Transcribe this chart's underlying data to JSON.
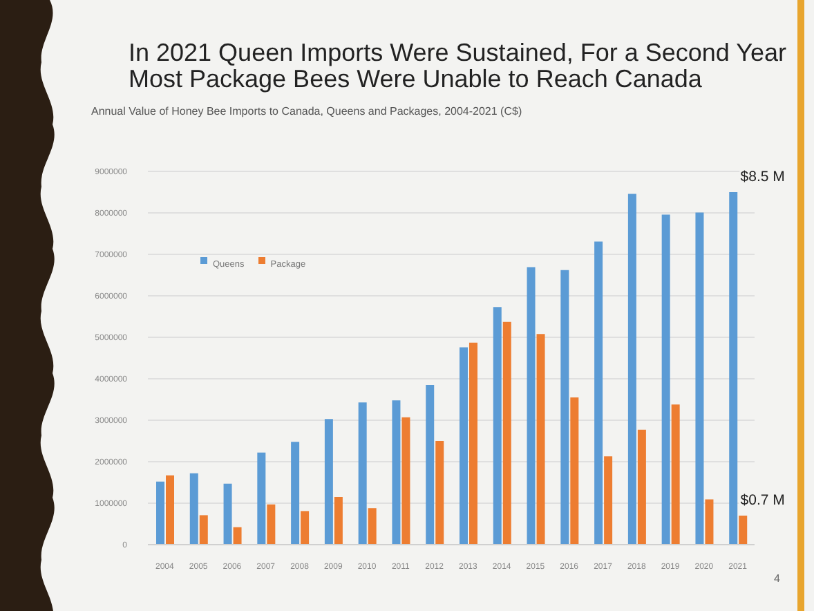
{
  "chart_data": {
    "type": "bar",
    "title": "In 2021 Queen Imports Were Sustained, For a Second Year Most Package Bees Were Unable to Reach Canada",
    "subtitle": "Annual Value of Honey Bee Imports to Canada, Queens and Packages, 2004-2021 (C$)",
    "categories": [
      "2004",
      "2005",
      "2006",
      "2007",
      "2008",
      "2009",
      "2010",
      "2011",
      "2012",
      "2013",
      "2014",
      "2015",
      "2016",
      "2017",
      "2018",
      "2019",
      "2020",
      "2021"
    ],
    "series": [
      {
        "name": "Queens",
        "color": "#5b9bd5",
        "values": [
          1520000,
          1720000,
          1470000,
          2220000,
          2480000,
          3030000,
          3430000,
          3480000,
          3850000,
          4760000,
          5730000,
          6690000,
          6620000,
          7310000,
          8460000,
          7960000,
          8010000,
          8500000
        ]
      },
      {
        "name": "Package",
        "color": "#ed7d31",
        "values": [
          1670000,
          710000,
          420000,
          970000,
          810000,
          1150000,
          880000,
          3070000,
          2500000,
          4870000,
          5370000,
          5080000,
          3550000,
          2130000,
          2770000,
          3380000,
          1090000,
          700000
        ]
      }
    ],
    "ylim": [
      0,
      9000000
    ],
    "yticks": [
      0,
      1000000,
      2000000,
      3000000,
      4000000,
      5000000,
      6000000,
      7000000,
      8000000,
      9000000
    ],
    "grid": "y",
    "legend": "top left",
    "annotations": [
      {
        "text": "$8.5 M",
        "x": "2021",
        "y": 8500000
      },
      {
        "text": "$0.7 M",
        "x": "2021",
        "y": 700000
      },
      "4"
    ]
  }
}
